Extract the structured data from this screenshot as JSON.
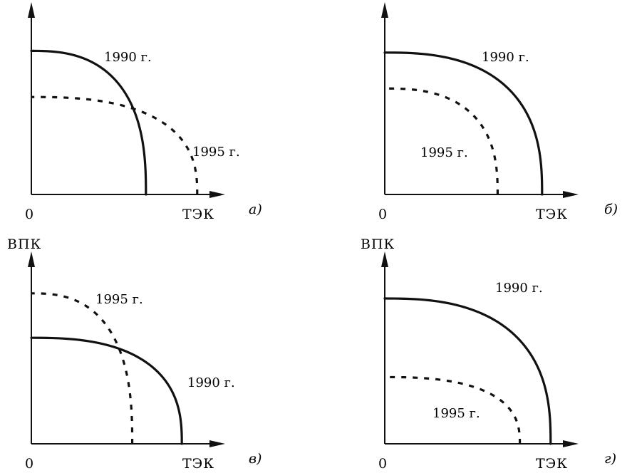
{
  "y_axis_label": "ВПК",
  "x_axis_label": "ТЭК",
  "origin_label": "0",
  "panels": [
    {
      "id": "a",
      "panel_label": "а)",
      "curves": [
        {
          "year_label": "1990 г.",
          "style": "solid",
          "y_intercept": 0.84,
          "x_intercept": 0.67
        },
        {
          "year_label": "1995 г.",
          "style": "dotted",
          "y_intercept": 0.57,
          "x_intercept": 0.97
        }
      ]
    },
    {
      "id": "b",
      "panel_label": "б)",
      "curves": [
        {
          "year_label": "1990 г.",
          "style": "solid",
          "y_intercept": 0.83,
          "x_intercept": 0.92
        },
        {
          "year_label": "1995 г.",
          "style": "dotted",
          "y_intercept": 0.62,
          "x_intercept": 0.66
        }
      ]
    },
    {
      "id": "v",
      "panel_label": "в)",
      "curves": [
        {
          "year_label": "1995 г.",
          "style": "dotted",
          "y_intercept": 0.88,
          "x_intercept": 0.59
        },
        {
          "year_label": "1990 г.",
          "style": "solid",
          "y_intercept": 0.62,
          "x_intercept": 0.88
        }
      ]
    },
    {
      "id": "g",
      "panel_label": "г)",
      "curves": [
        {
          "year_label": "1990 г.",
          "style": "solid",
          "y_intercept": 0.85,
          "x_intercept": 0.97
        },
        {
          "year_label": "1995 г.",
          "style": "dotted",
          "y_intercept": 0.39,
          "x_intercept": 0.79
        }
      ]
    }
  ]
}
